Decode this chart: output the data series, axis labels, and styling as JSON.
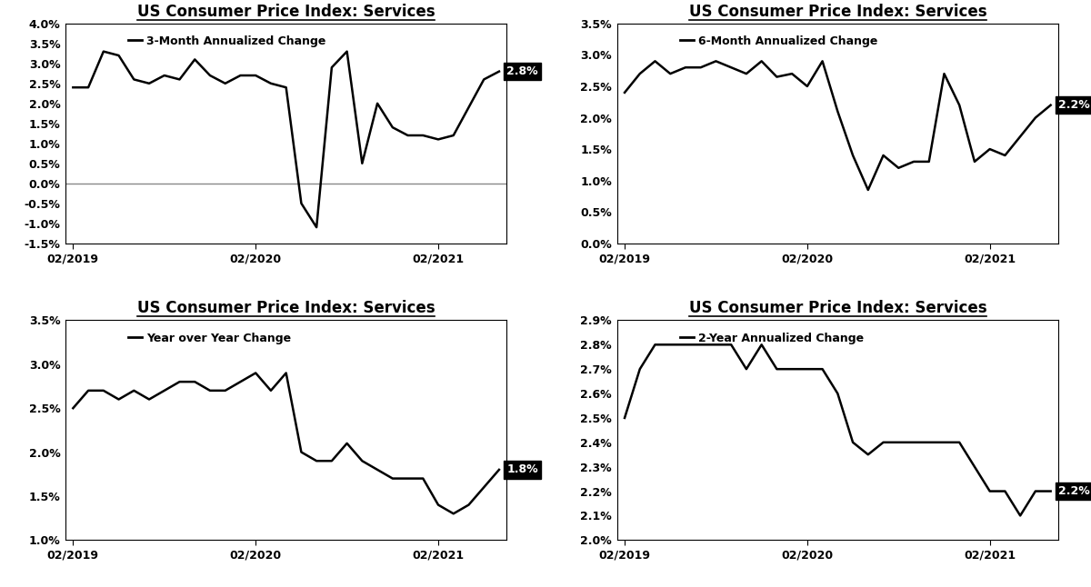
{
  "title": "US Consumer Price Index: Services",
  "panels": [
    {
      "legend": "3-Month Annualized Change",
      "ylim": [
        -0.015,
        0.04
      ],
      "yticks": [
        -0.015,
        -0.01,
        -0.005,
        0.0,
        0.005,
        0.01,
        0.015,
        0.02,
        0.025,
        0.03,
        0.035,
        0.04
      ],
      "ytick_labels": [
        "-1.5%",
        "-1.0%",
        "-0.5%",
        "0.0%",
        "0.5%",
        "1.0%",
        "1.5%",
        "2.0%",
        "2.5%",
        "3.0%",
        "3.5%",
        "4.0%"
      ],
      "zero_line": true,
      "end_label": "2.8%",
      "data_y": [
        0.024,
        0.024,
        0.033,
        0.032,
        0.026,
        0.025,
        0.027,
        0.026,
        0.031,
        0.027,
        0.025,
        0.027,
        0.027,
        0.025,
        0.024,
        -0.005,
        -0.011,
        0.029,
        0.033,
        0.005,
        0.02,
        0.014,
        0.012,
        0.012,
        0.011,
        0.012,
        0.019,
        0.026,
        0.028
      ]
    },
    {
      "legend": "6-Month Annualized Change",
      "ylim": [
        0.0,
        0.035
      ],
      "yticks": [
        0.0,
        0.005,
        0.01,
        0.015,
        0.02,
        0.025,
        0.03,
        0.035
      ],
      "ytick_labels": [
        "0.0%",
        "0.5%",
        "1.0%",
        "1.5%",
        "2.0%",
        "2.5%",
        "3.0%",
        "3.5%"
      ],
      "zero_line": false,
      "end_label": "2.2%",
      "data_y": [
        0.024,
        0.027,
        0.029,
        0.027,
        0.028,
        0.028,
        0.029,
        0.028,
        0.027,
        0.029,
        0.0265,
        0.027,
        0.025,
        0.029,
        0.021,
        0.014,
        0.0085,
        0.014,
        0.012,
        0.013,
        0.013,
        0.027,
        0.022,
        0.013,
        0.015,
        0.014,
        0.017,
        0.02,
        0.022
      ]
    },
    {
      "legend": "Year over Year Change",
      "ylim": [
        0.01,
        0.035
      ],
      "yticks": [
        0.01,
        0.015,
        0.02,
        0.025,
        0.03,
        0.035
      ],
      "ytick_labels": [
        "1.0%",
        "1.5%",
        "2.0%",
        "2.5%",
        "3.0%",
        "3.5%"
      ],
      "zero_line": false,
      "end_label": "1.8%",
      "data_y": [
        0.025,
        0.027,
        0.027,
        0.026,
        0.027,
        0.026,
        0.027,
        0.028,
        0.028,
        0.027,
        0.027,
        0.028,
        0.029,
        0.027,
        0.029,
        0.02,
        0.019,
        0.019,
        0.021,
        0.019,
        0.018,
        0.017,
        0.017,
        0.017,
        0.014,
        0.013,
        0.014,
        0.016,
        0.018
      ]
    },
    {
      "legend": "2-Year Annualized Change",
      "ylim": [
        0.02,
        0.029
      ],
      "yticks": [
        0.02,
        0.021,
        0.022,
        0.023,
        0.024,
        0.025,
        0.026,
        0.027,
        0.028,
        0.029
      ],
      "ytick_labels": [
        "2.0%",
        "2.1%",
        "2.2%",
        "2.3%",
        "2.4%",
        "2.5%",
        "2.6%",
        "2.7%",
        "2.8%",
        "2.9%"
      ],
      "zero_line": false,
      "end_label": "2.2%",
      "data_y": [
        0.025,
        0.027,
        0.028,
        0.028,
        0.028,
        0.028,
        0.028,
        0.028,
        0.027,
        0.028,
        0.027,
        0.027,
        0.027,
        0.027,
        0.026,
        0.024,
        0.0235,
        0.024,
        0.024,
        0.024,
        0.024,
        0.024,
        0.024,
        0.023,
        0.022,
        0.022,
        0.021,
        0.022,
        0.022
      ]
    }
  ],
  "n_points": 29,
  "xtick_positions": [
    0,
    12,
    24
  ],
  "xtick_labels": [
    "02/2019",
    "02/2020",
    "02/2021"
  ],
  "line_color": "#000000",
  "line_width": 1.8,
  "label_bg_color": "#000000",
  "label_text_color": "#ffffff",
  "zero_line_color": "#888888",
  "bg_color": "#ffffff",
  "title_fontsize": 12,
  "tick_fontsize": 9,
  "legend_fontsize": 9
}
